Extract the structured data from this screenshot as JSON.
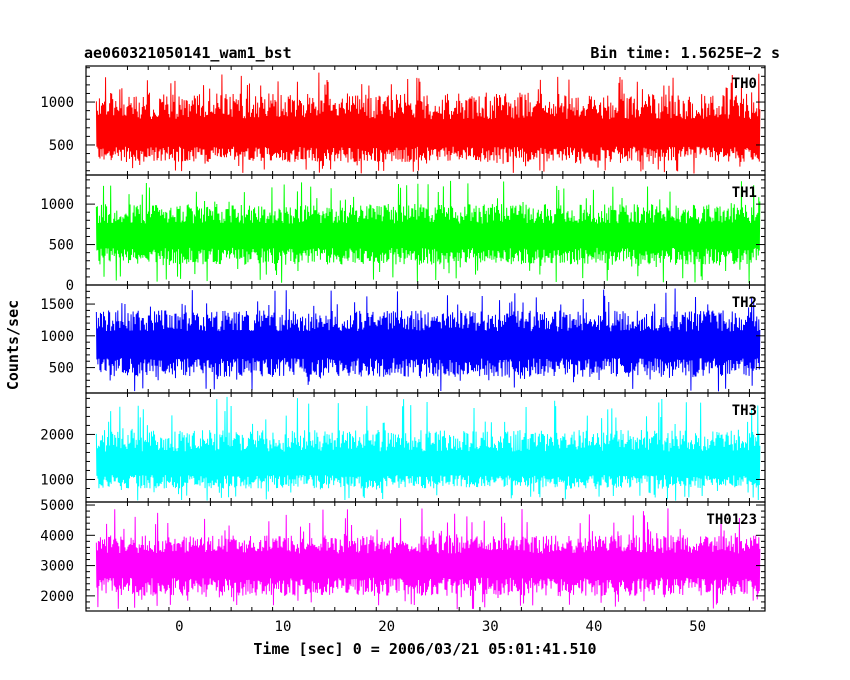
{
  "header": {
    "title": "ae060321050141_wam1_bst",
    "bin_time": "Bin time: 1.5625E−2 s"
  },
  "chart_data": {
    "type": "line",
    "title": "ae060321050141_wam1_bst",
    "subtitle": "Bin time: 1.5625E−2 s",
    "xlabel": "Time [sec] 0 = 2006/03/21 05:01:41.510",
    "ylabel": "Counts/sec",
    "xlim": [
      -9,
      56.5
    ],
    "x_ticks": [
      0,
      10,
      20,
      30,
      40,
      50
    ],
    "x_start": -8,
    "x_end": 56,
    "grid": false,
    "panels": [
      {
        "name": "TH0",
        "color": "#ff0000",
        "ylim": [
          150,
          1420
        ],
        "y_ticks": [
          500,
          1000
        ],
        "mean": 600,
        "noise_low": 300,
        "noise_high": 1100,
        "spike_max": 1350
      },
      {
        "name": "TH1",
        "color": "#00ff00",
        "ylim": [
          0,
          1360
        ],
        "y_ticks": [
          0,
          500,
          1000
        ],
        "mean": 600,
        "noise_low": 250,
        "noise_high": 1000,
        "spike_max": 1300
      },
      {
        "name": "TH2",
        "color": "#0000ff",
        "ylim": [
          100,
          1800
        ],
        "y_ticks": [
          500,
          1000,
          1500
        ],
        "mean": 850,
        "noise_low": 350,
        "noise_high": 1400,
        "spike_max": 1750
      },
      {
        "name": "TH3",
        "color": "#00ffff",
        "ylim": [
          500,
          2920
        ],
        "y_ticks": [
          1000,
          2000
        ],
        "mean": 1300,
        "noise_low": 800,
        "noise_high": 2100,
        "spike_max": 2850
      },
      {
        "name": "TH0123",
        "color": "#ff00ff",
        "ylim": [
          1500,
          5100
        ],
        "y_ticks": [
          2000,
          3000,
          4000,
          5000
        ],
        "mean": 3000,
        "noise_low": 2000,
        "noise_high": 4000,
        "spike_max": 4900
      }
    ]
  }
}
